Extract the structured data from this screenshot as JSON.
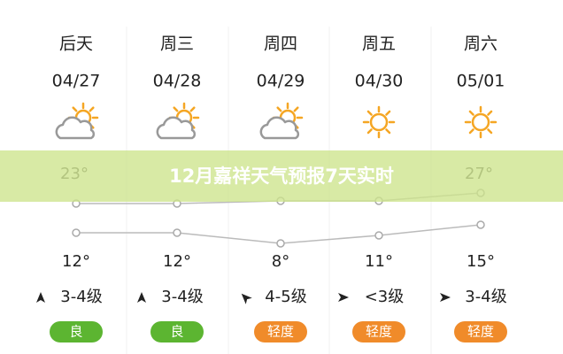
{
  "banner": "12月嘉祥天气预报7天实时",
  "days": [
    {
      "name": "后天",
      "date": "04/27",
      "high": {
        "value": 23,
        "label": "23°"
      },
      "low": {
        "value": 12,
        "label": "12°"
      },
      "wind": "3-4级",
      "aqi": "良"
    },
    {
      "name": "周三",
      "date": "04/28",
      "high": {
        "value": 23
      },
      "low": {
        "value": 12,
        "label": "12°"
      },
      "wind": "3-4级",
      "aqi": "良"
    },
    {
      "name": "周四",
      "date": "04/29",
      "high": {
        "value": 24
      },
      "low": {
        "value": 8,
        "label": "8°"
      },
      "wind": "4-5级",
      "aqi": "轻度"
    },
    {
      "name": "周五",
      "date": "04/30",
      "high": {
        "value": 24
      },
      "low": {
        "value": 11,
        "label": "11°"
      },
      "wind": "<3级",
      "aqi": "轻度"
    },
    {
      "name": "周六",
      "date": "05/01",
      "high": {
        "value": 27,
        "label": "27°"
      },
      "low": {
        "value": 15,
        "label": "15°"
      },
      "wind": "3-4级",
      "aqi": "轻度"
    }
  ]
}
